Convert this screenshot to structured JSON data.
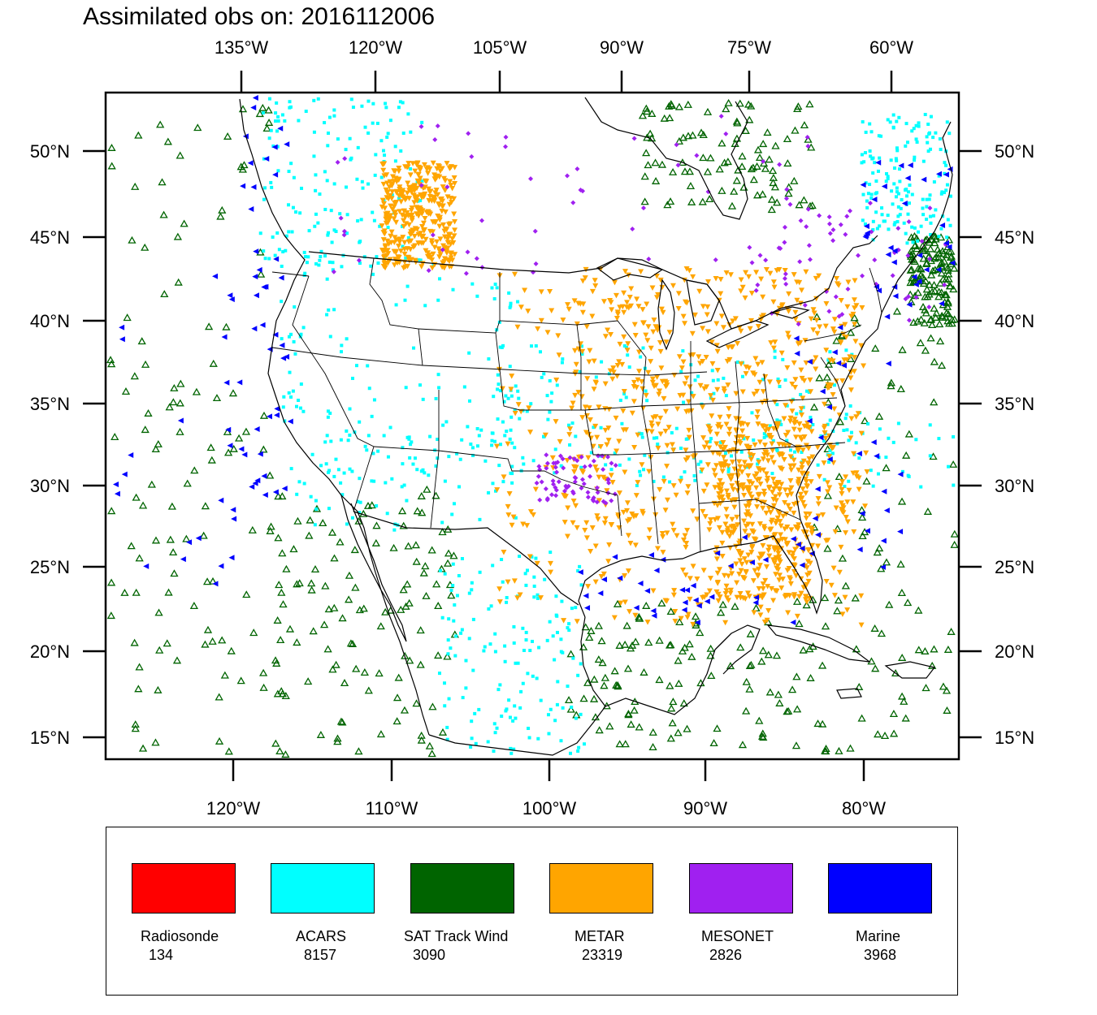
{
  "title": "Assimilated obs on: 2016112006",
  "map": {
    "top_lon_labels": [
      "135°W",
      "120°W",
      "105°W",
      "90°W",
      "75°W",
      "60°W"
    ],
    "bottom_lon_labels": [
      "120°W",
      "110°W",
      "100°W",
      "90°W",
      "80°W"
    ],
    "lat_labels": [
      "50°N",
      "45°N",
      "40°N",
      "35°N",
      "30°N",
      "25°N",
      "20°N",
      "15°N"
    ]
  },
  "colors": {
    "radiosonde": "#ff0000",
    "acars": "#00ffff",
    "sat_track_wind": "#006400",
    "metar": "#ffa500",
    "mesonet": "#a020f0",
    "marine": "#0000ff"
  },
  "legend": [
    {
      "name": "Radiosonde",
      "count": "134",
      "color": "#ff0000",
      "icon": "red-swatch"
    },
    {
      "name": "ACARS",
      "count": "8157",
      "color": "#00ffff",
      "icon": "cyan-swatch"
    },
    {
      "name": "SAT Track Wind",
      "count": "3090",
      "color": "#006400",
      "icon": "dark-green-swatch"
    },
    {
      "name": "METAR",
      "count": "23319",
      "color": "#ffa500",
      "icon": "orange-swatch"
    },
    {
      "name": "MESONET",
      "count": "2826",
      "color": "#a020f0",
      "icon": "purple-swatch"
    },
    {
      "name": "Marine",
      "count": "3968",
      "color": "#0000ff",
      "icon": "blue-swatch"
    }
  ]
}
